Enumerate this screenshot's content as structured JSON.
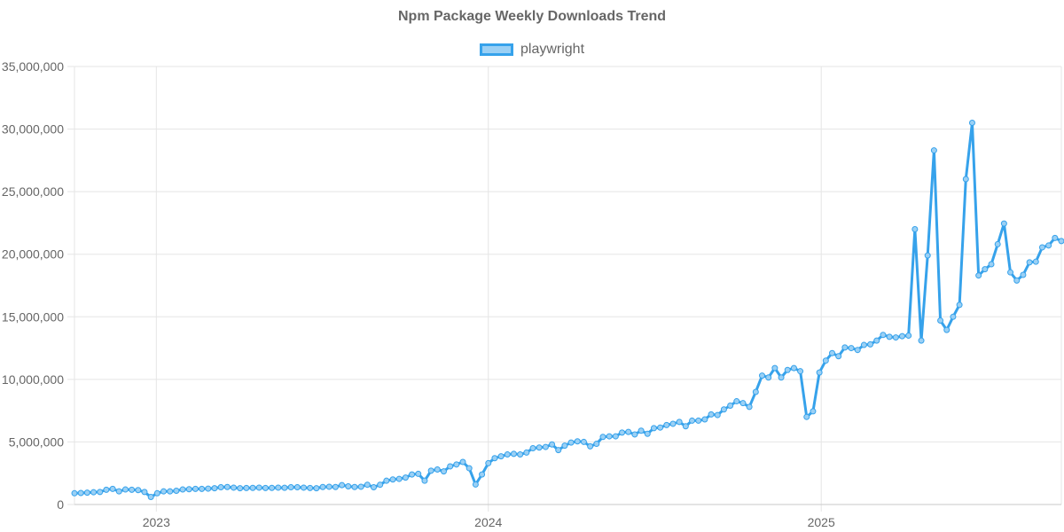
{
  "chart_data": {
    "type": "line",
    "title": "Npm Package Weekly Downloads Trend",
    "legend_position": "top",
    "grid": true,
    "colors": {
      "line": "#36a2eb",
      "fill": "#9ad0f5",
      "grid": "#e5e5e5",
      "text": "#666666"
    },
    "ylim": [
      0,
      35000000
    ],
    "y_ticks": [
      0,
      5000000,
      10000000,
      15000000,
      20000000,
      25000000,
      30000000,
      35000000
    ],
    "y_tick_labels": [
      "0",
      "5,000,000",
      "10,000,000",
      "15,000,000",
      "20,000,000",
      "25,000,000",
      "30,000,000",
      "35,000,000"
    ],
    "x_range": [
      "2022-10-03",
      "2025-09-15"
    ],
    "x_ticks": [
      "2023-01-01",
      "2024-01-01",
      "2025-01-01"
    ],
    "x_tick_labels": [
      "2023",
      "2024",
      "2025"
    ],
    "series": [
      {
        "name": "playwright",
        "points": [
          [
            "2022-10-03",
            900000
          ],
          [
            "2022-10-10",
            920000
          ],
          [
            "2022-10-17",
            950000
          ],
          [
            "2022-10-24",
            980000
          ],
          [
            "2022-10-31",
            1000000
          ],
          [
            "2022-11-07",
            1180000
          ],
          [
            "2022-11-14",
            1250000
          ],
          [
            "2022-11-21",
            1050000
          ],
          [
            "2022-11-28",
            1200000
          ],
          [
            "2022-12-05",
            1180000
          ],
          [
            "2022-12-12",
            1150000
          ],
          [
            "2022-12-19",
            1000000
          ],
          [
            "2022-12-26",
            600000
          ],
          [
            "2023-01-02",
            900000
          ],
          [
            "2023-01-09",
            1050000
          ],
          [
            "2023-01-16",
            1050000
          ],
          [
            "2023-01-23",
            1100000
          ],
          [
            "2023-01-30",
            1200000
          ],
          [
            "2023-02-06",
            1220000
          ],
          [
            "2023-02-13",
            1250000
          ],
          [
            "2023-02-20",
            1250000
          ],
          [
            "2023-02-27",
            1270000
          ],
          [
            "2023-03-06",
            1300000
          ],
          [
            "2023-03-13",
            1380000
          ],
          [
            "2023-03-20",
            1400000
          ],
          [
            "2023-03-27",
            1350000
          ],
          [
            "2023-04-03",
            1300000
          ],
          [
            "2023-04-10",
            1320000
          ],
          [
            "2023-04-17",
            1330000
          ],
          [
            "2023-04-24",
            1350000
          ],
          [
            "2023-05-01",
            1320000
          ],
          [
            "2023-05-08",
            1330000
          ],
          [
            "2023-05-15",
            1350000
          ],
          [
            "2023-05-22",
            1340000
          ],
          [
            "2023-05-29",
            1380000
          ],
          [
            "2023-06-05",
            1380000
          ],
          [
            "2023-06-12",
            1350000
          ],
          [
            "2023-06-19",
            1320000
          ],
          [
            "2023-06-26",
            1300000
          ],
          [
            "2023-07-03",
            1400000
          ],
          [
            "2023-07-10",
            1420000
          ],
          [
            "2023-07-17",
            1400000
          ],
          [
            "2023-07-24",
            1550000
          ],
          [
            "2023-07-31",
            1450000
          ],
          [
            "2023-08-07",
            1400000
          ],
          [
            "2023-08-14",
            1420000
          ],
          [
            "2023-08-21",
            1580000
          ],
          [
            "2023-08-28",
            1380000
          ],
          [
            "2023-09-04",
            1580000
          ],
          [
            "2023-09-11",
            1900000
          ],
          [
            "2023-09-18",
            2000000
          ],
          [
            "2023-09-25",
            2050000
          ],
          [
            "2023-10-02",
            2150000
          ],
          [
            "2023-10-09",
            2400000
          ],
          [
            "2023-10-16",
            2450000
          ],
          [
            "2023-10-23",
            1900000
          ],
          [
            "2023-10-30",
            2700000
          ],
          [
            "2023-11-06",
            2800000
          ],
          [
            "2023-11-13",
            2650000
          ],
          [
            "2023-11-20",
            3050000
          ],
          [
            "2023-11-27",
            3200000
          ],
          [
            "2023-12-04",
            3400000
          ],
          [
            "2023-12-11",
            2900000
          ],
          [
            "2023-12-18",
            1600000
          ],
          [
            "2023-12-25",
            2400000
          ],
          [
            "2024-01-01",
            3300000
          ],
          [
            "2024-01-08",
            3700000
          ],
          [
            "2024-01-15",
            3850000
          ],
          [
            "2024-01-22",
            4000000
          ],
          [
            "2024-01-29",
            4050000
          ],
          [
            "2024-02-05",
            4000000
          ],
          [
            "2024-02-12",
            4150000
          ],
          [
            "2024-02-19",
            4500000
          ],
          [
            "2024-02-26",
            4550000
          ],
          [
            "2024-03-04",
            4600000
          ],
          [
            "2024-03-11",
            4800000
          ],
          [
            "2024-03-18",
            4350000
          ],
          [
            "2024-03-25",
            4700000
          ],
          [
            "2024-04-01",
            4950000
          ],
          [
            "2024-04-08",
            5050000
          ],
          [
            "2024-04-15",
            5000000
          ],
          [
            "2024-04-22",
            4650000
          ],
          [
            "2024-04-29",
            4850000
          ],
          [
            "2024-05-06",
            5400000
          ],
          [
            "2024-05-13",
            5450000
          ],
          [
            "2024-05-20",
            5450000
          ],
          [
            "2024-05-27",
            5750000
          ],
          [
            "2024-06-03",
            5800000
          ],
          [
            "2024-06-10",
            5600000
          ],
          [
            "2024-06-17",
            5900000
          ],
          [
            "2024-06-24",
            5650000
          ],
          [
            "2024-07-01",
            6100000
          ],
          [
            "2024-07-08",
            6150000
          ],
          [
            "2024-07-15",
            6350000
          ],
          [
            "2024-07-22",
            6450000
          ],
          [
            "2024-07-29",
            6600000
          ],
          [
            "2024-08-05",
            6250000
          ],
          [
            "2024-08-12",
            6700000
          ],
          [
            "2024-08-19",
            6700000
          ],
          [
            "2024-08-26",
            6800000
          ],
          [
            "2024-09-02",
            7200000
          ],
          [
            "2024-09-09",
            7150000
          ],
          [
            "2024-09-16",
            7600000
          ],
          [
            "2024-09-23",
            7900000
          ],
          [
            "2024-09-30",
            8250000
          ],
          [
            "2024-10-07",
            8100000
          ],
          [
            "2024-10-14",
            7800000
          ],
          [
            "2024-10-21",
            9000000
          ],
          [
            "2024-10-28",
            10300000
          ],
          [
            "2024-11-04",
            10150000
          ],
          [
            "2024-11-11",
            10900000
          ],
          [
            "2024-11-18",
            10150000
          ],
          [
            "2024-11-25",
            10750000
          ],
          [
            "2024-12-02",
            10900000
          ],
          [
            "2024-12-09",
            10650000
          ],
          [
            "2024-12-16",
            7000000
          ],
          [
            "2024-12-23",
            7450000
          ],
          [
            "2024-12-30",
            10550000
          ],
          [
            "2025-01-06",
            11500000
          ],
          [
            "2025-01-13",
            12100000
          ],
          [
            "2025-01-20",
            11850000
          ],
          [
            "2025-01-27",
            12550000
          ],
          [
            "2025-02-03",
            12500000
          ],
          [
            "2025-02-10",
            12350000
          ],
          [
            "2025-02-17",
            12750000
          ],
          [
            "2025-02-24",
            12800000
          ],
          [
            "2025-03-03",
            13100000
          ],
          [
            "2025-03-10",
            13550000
          ],
          [
            "2025-03-17",
            13400000
          ],
          [
            "2025-03-24",
            13350000
          ],
          [
            "2025-03-31",
            13450000
          ],
          [
            "2025-04-07",
            13500000
          ],
          [
            "2025-04-14",
            22000000
          ],
          [
            "2025-04-21",
            13100000
          ],
          [
            "2025-04-28",
            19900000
          ],
          [
            "2025-05-05",
            28300000
          ],
          [
            "2025-05-12",
            14700000
          ],
          [
            "2025-05-19",
            13950000
          ],
          [
            "2025-05-26",
            15000000
          ],
          [
            "2025-06-02",
            15950000
          ],
          [
            "2025-06-09",
            26000000
          ],
          [
            "2025-06-16",
            30500000
          ],
          [
            "2025-06-23",
            18300000
          ],
          [
            "2025-06-30",
            18800000
          ],
          [
            "2025-07-07",
            19200000
          ],
          [
            "2025-07-14",
            20800000
          ],
          [
            "2025-07-21",
            22450000
          ],
          [
            "2025-07-28",
            18550000
          ],
          [
            "2025-08-04",
            17900000
          ],
          [
            "2025-08-11",
            18350000
          ],
          [
            "2025-08-18",
            19350000
          ],
          [
            "2025-08-25",
            19400000
          ],
          [
            "2025-09-01",
            20550000
          ],
          [
            "2025-09-08",
            20700000
          ],
          [
            "2025-09-15",
            21300000
          ],
          [
            "2025-09-22",
            21050000
          ]
        ]
      }
    ]
  }
}
